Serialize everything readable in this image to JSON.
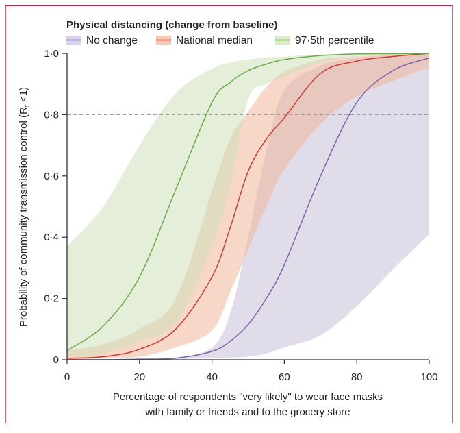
{
  "chart_data": {
    "type": "line",
    "legend_title": "Physical distancing (change from baseline)",
    "legend_placement": "top-left",
    "xlabel_line1": "Percentage of respondents \"very likely\" to wear face masks",
    "xlabel_line2": "with family or friends and to the grocery store",
    "ylabel": "Probability of community transmission control (R",
    "ylabel_sub": "t",
    "ylabel_end": " <1)",
    "xlim": [
      0,
      100
    ],
    "ylim": [
      0,
      1
    ],
    "x_ticks": [
      "0",
      "20",
      "40",
      "60",
      "80",
      "100"
    ],
    "x_tick_values": [
      0,
      20,
      40,
      60,
      80,
      100
    ],
    "y_ticks": [
      "0",
      "0·2",
      "0·4",
      "0·6",
      "0·8",
      "1·0"
    ],
    "y_tick_values": [
      0,
      0.2,
      0.4,
      0.6,
      0.8,
      1.0
    ],
    "reference_line": {
      "y": 0.8,
      "style": "dashed"
    },
    "x": [
      0,
      10,
      20,
      30,
      40,
      45,
      50,
      55,
      60,
      70,
      80,
      90,
      100
    ],
    "series": [
      {
        "name": "No change",
        "line_color": "#7b62a6",
        "band_color": "#c9bfd8",
        "median": [
          0.0,
          0.0,
          0.002,
          0.005,
          0.027,
          0.06,
          0.115,
          0.2,
          0.31,
          0.6,
          0.84,
          0.944,
          0.985
        ],
        "upper": [
          0.0,
          0.001,
          0.002,
          0.006,
          0.04,
          0.15,
          0.4,
          0.68,
          0.88,
          0.96,
          0.985,
          0.995,
          1.0
        ],
        "lower": [
          0.0,
          0.0,
          0.0,
          0.002,
          0.005,
          0.007,
          0.01,
          0.02,
          0.04,
          0.08,
          0.175,
          0.295,
          0.41
        ]
      },
      {
        "name": "National median",
        "line_color": "#d13b2d",
        "band_color": "#eeb79b",
        "median": [
          0.005,
          0.01,
          0.034,
          0.1,
          0.27,
          0.43,
          0.615,
          0.72,
          0.79,
          0.935,
          0.975,
          0.99,
          1.0
        ],
        "upper": [
          0.03,
          0.05,
          0.1,
          0.2,
          0.55,
          0.72,
          0.81,
          0.89,
          0.94,
          0.98,
          0.99,
          0.998,
          1.0
        ],
        "lower": [
          0.0,
          0.005,
          0.01,
          0.04,
          0.095,
          0.22,
          0.36,
          0.5,
          0.62,
          0.77,
          0.86,
          0.91,
          0.955
        ]
      },
      {
        "name": "97·5th percentile",
        "line_color": "#6aaa4a",
        "band_color": "#cfe0b8",
        "median": [
          0.03,
          0.11,
          0.27,
          0.555,
          0.84,
          0.905,
          0.944,
          0.965,
          0.98,
          0.993,
          0.998,
          0.999,
          1.0
        ],
        "upper": [
          0.37,
          0.5,
          0.7,
          0.87,
          0.95,
          0.97,
          0.98,
          0.987,
          0.99,
          0.996,
          0.999,
          1.0,
          1.0
        ],
        "lower": [
          0.01,
          0.02,
          0.06,
          0.12,
          0.37,
          0.57,
          0.85,
          0.9,
          0.925,
          0.97,
          0.99,
          0.997,
          1.0
        ]
      }
    ]
  }
}
